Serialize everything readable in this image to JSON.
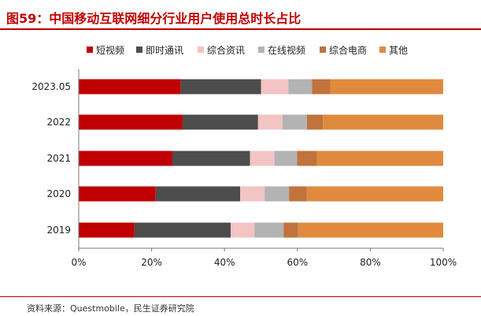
{
  "title": "图59：中国移动互联网细分行业用户使用总时长占比",
  "source": "资料来源：Questmobile，民生证券研究院",
  "chart_data": {
    "type": "bar",
    "orientation": "horizontal",
    "stacked": true,
    "categories": [
      "2023.05",
      "2022",
      "2021",
      "2020",
      "2019"
    ],
    "series": [
      {
        "name": "短视频",
        "color": "#c00000",
        "values": [
          28.0,
          28.5,
          25.7,
          21.1,
          15.3
        ]
      },
      {
        "name": "即时通讯",
        "color": "#4d4d4d",
        "values": [
          22.0,
          20.7,
          21.3,
          23.2,
          26.4
        ]
      },
      {
        "name": "综合资讯",
        "color": "#f2c4c4",
        "values": [
          7.5,
          6.7,
          6.7,
          6.7,
          6.5
        ]
      },
      {
        "name": "在线视频",
        "color": "#b3b3b3",
        "values": [
          6.5,
          6.7,
          6.2,
          6.7,
          8.0
        ]
      },
      {
        "name": "综合电商",
        "color": "#c0733c",
        "values": [
          5.0,
          4.4,
          5.5,
          4.9,
          4.0
        ]
      },
      {
        "name": "其他",
        "color": "#df8a3e",
        "values": [
          31.0,
          33.0,
          34.6,
          37.4,
          39.8
        ]
      }
    ],
    "xlim": [
      0,
      100
    ],
    "xticks": [
      "0%",
      "20%",
      "40%",
      "60%",
      "80%",
      "100%"
    ],
    "legend_position": "top",
    "grid": false
  }
}
